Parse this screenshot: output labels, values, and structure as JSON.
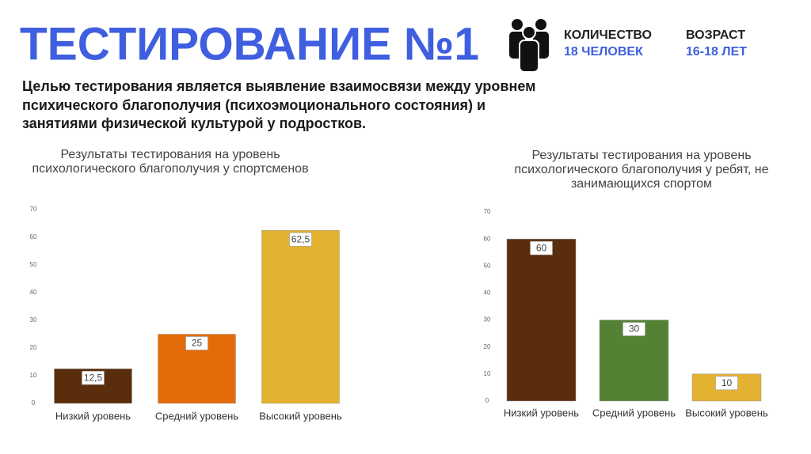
{
  "header": {
    "title": "ТЕСТИРОВАНИЕ №1",
    "stats": [
      {
        "label": "КОЛИЧЕСТВО",
        "value": "18 ЧЕЛОВЕК"
      },
      {
        "label": "ВОЗРАСТ",
        "value": "16-18 ЛЕТ"
      }
    ]
  },
  "description": "Целью тестирования является выявление взаимосвязи между уровнем психического благополучия (психоэмоционального состояния) и занятиями физической культурой у подростков.",
  "chart_data": [
    {
      "type": "bar",
      "title": "Результаты тестирования на уровень психологического благополучия у спортсменов",
      "categories": [
        "Низкий уровень",
        "Средний уровень",
        "Высокий уровень"
      ],
      "values": [
        12.5,
        25,
        62.5
      ],
      "value_labels": [
        "12,5",
        "25",
        "62,5"
      ],
      "colors": [
        "#5a2d0c",
        "#e36c09",
        "#e3b230"
      ],
      "ylim": [
        0,
        70
      ],
      "yticks": [
        0,
        10,
        20,
        30,
        40,
        50,
        60,
        70
      ]
    },
    {
      "type": "bar",
      "title": "Результаты тестирования на уровень психологического благополучия у ребят, не занимающихся спортом",
      "categories": [
        "Низкий уровень",
        "Средний уровень",
        "Высокий уровень"
      ],
      "values": [
        60,
        30,
        10
      ],
      "colors": [
        "#5a2d0c",
        "#548235",
        "#e3b230"
      ],
      "ylim": [
        0,
        70
      ],
      "yticks": [
        0,
        10,
        20,
        30,
        40,
        50,
        60,
        70
      ]
    }
  ]
}
